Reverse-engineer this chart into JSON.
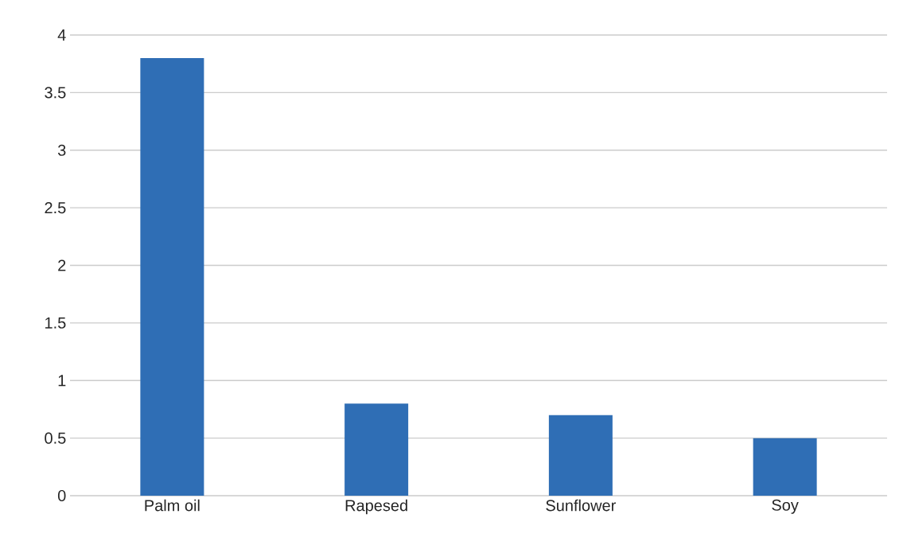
{
  "chart_data": {
    "type": "bar",
    "categories": [
      "Palm oil",
      "Rapesed",
      "Sunflower",
      "Soy"
    ],
    "values": [
      3.8,
      0.8,
      0.7,
      0.5
    ],
    "color": "#2f6eb5",
    "ylim": [
      0,
      4
    ],
    "yticks": [
      0,
      0.5,
      1,
      1.5,
      2,
      2.5,
      3,
      3.5,
      4
    ],
    "grid": "y"
  }
}
